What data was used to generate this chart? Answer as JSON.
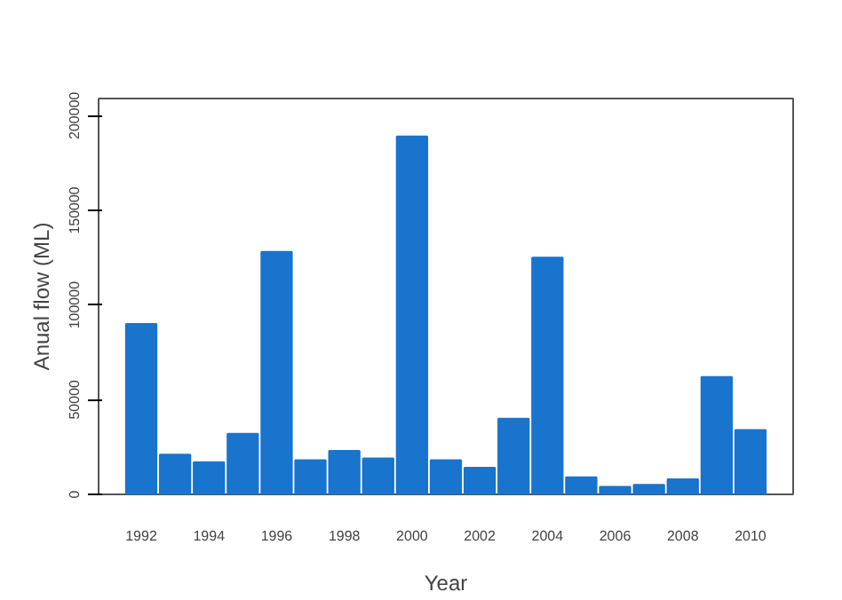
{
  "chart_data": {
    "type": "bar",
    "xlabel": "Year",
    "ylabel": "Anual flow (ML)",
    "categories": [
      "1992",
      null,
      "1994",
      null,
      "1996",
      null,
      "1998",
      null,
      "2000",
      null,
      "2002",
      null,
      "2004",
      null,
      "2006",
      null,
      "2008",
      null,
      "2010"
    ],
    "values": [
      90000,
      21000,
      17000,
      32000,
      128000,
      18000,
      23000,
      19000,
      189000,
      18000,
      14000,
      40000,
      125000,
      9000,
      4000,
      5000,
      8000,
      62000,
      34000
    ],
    "color": "#1874cd",
    "ylim": [
      0,
      209000
    ],
    "yticks": [
      0,
      50000,
      100000,
      150000,
      200000
    ],
    "grid": false
  }
}
